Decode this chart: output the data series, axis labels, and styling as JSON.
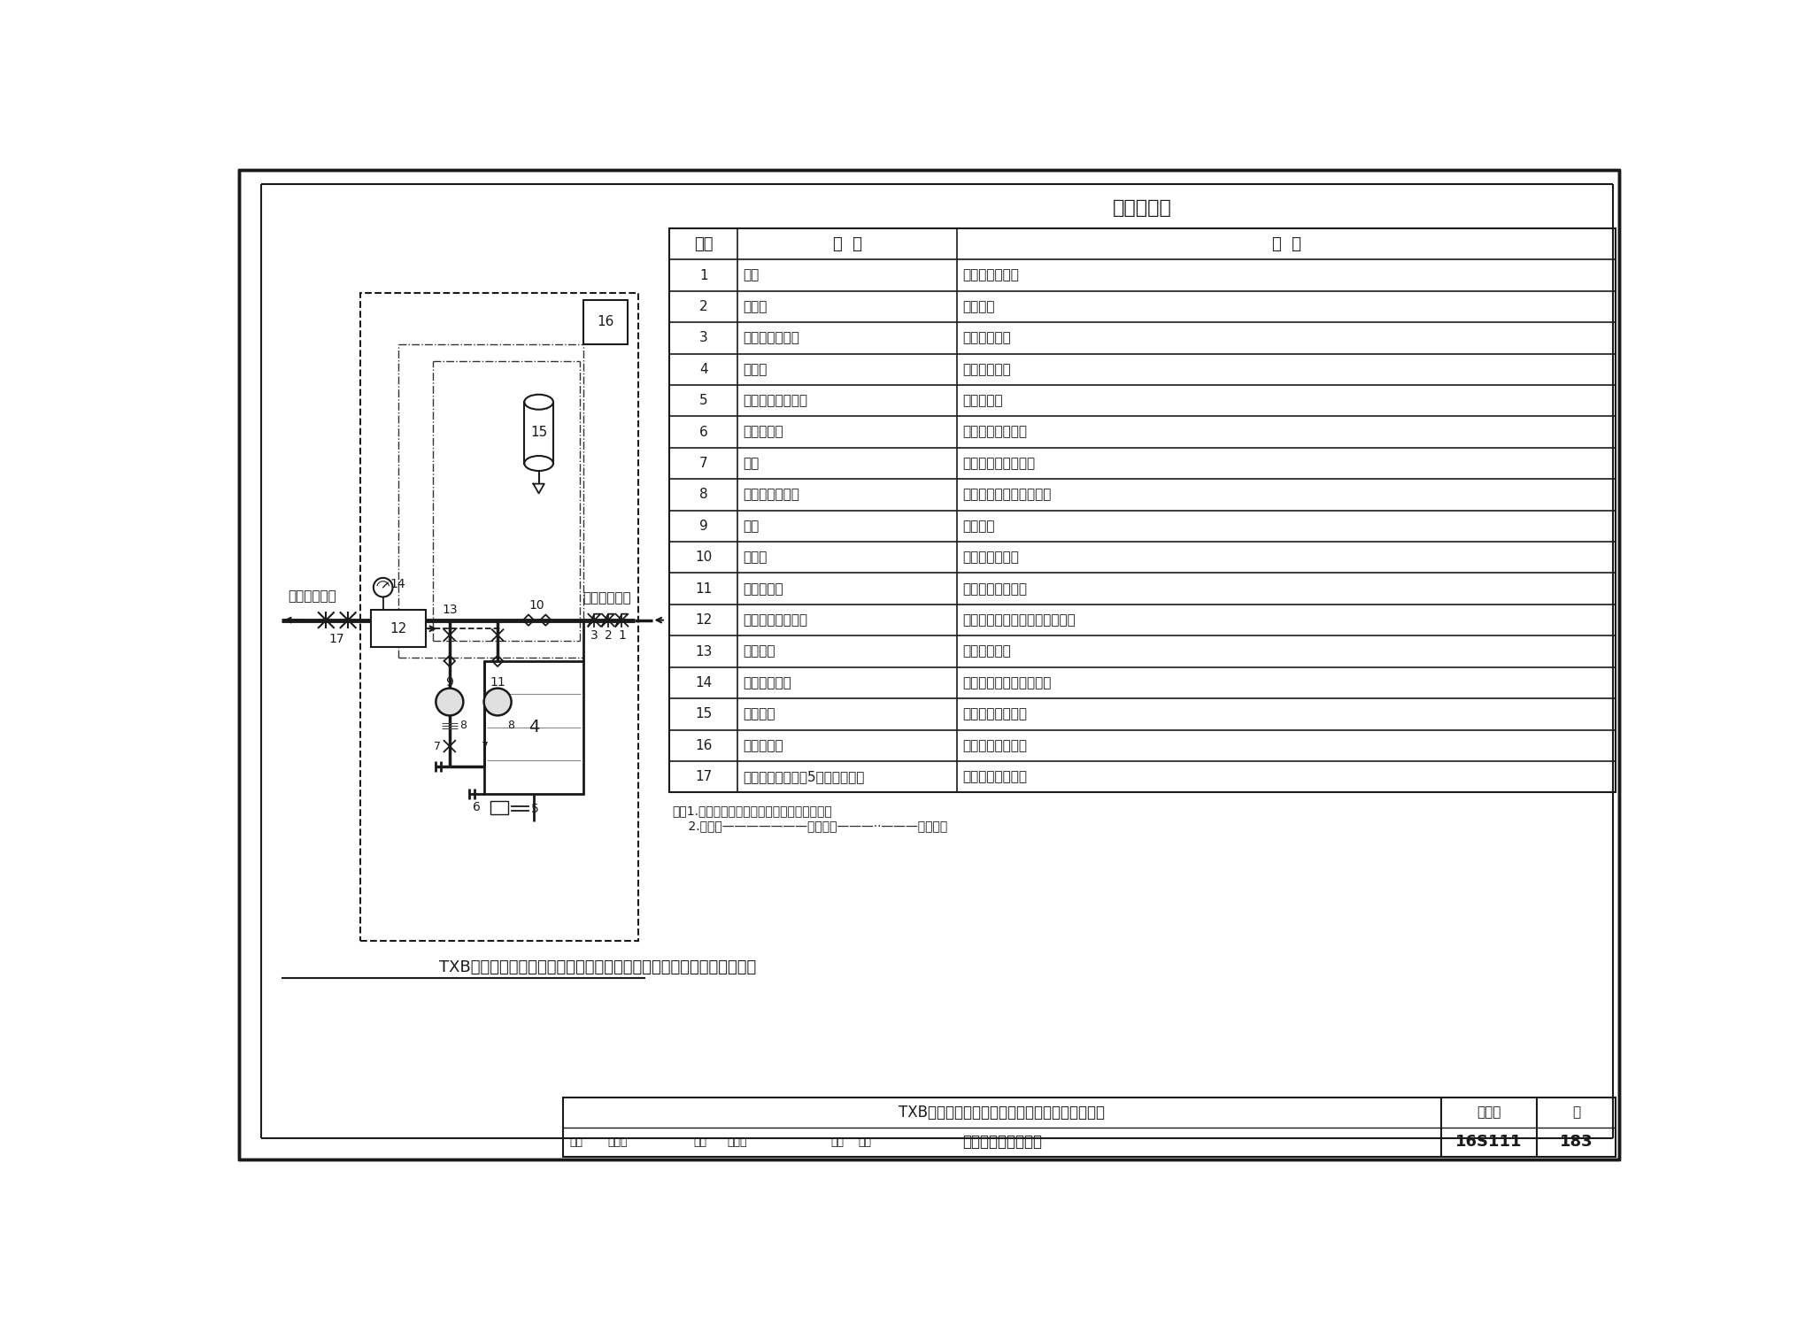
{
  "title": "主要部件表",
  "table_headers": [
    "序号",
    "名  称",
    "用  途"
  ],
  "table_data": [
    [
      "1",
      "阀门",
      "水箱进水控制阀"
    ],
    [
      "2",
      "过滤器",
      "水质过滤"
    ],
    [
      "3",
      "液压水位控制阀",
      "水箱自动补水"
    ],
    [
      "4",
      "储水箱",
      "储存所需水量"
    ],
    [
      "5",
      "水箱自洁消毒装置",
      "对储水消毒"
    ],
    [
      "6",
      "不锈钢滤网",
      "防止蚊虫进入水箱"
    ],
    [
      "7",
      "阀门",
      "水泵进、出口控制阀"
    ],
    [
      "8",
      "可曲挠橡胶接头",
      "隔振、便于管路拆卸检修"
    ],
    [
      "9",
      "主泵",
      "增压供水"
    ],
    [
      "10",
      "止回阀",
      "防止压力水回流"
    ],
    [
      "11",
      "小流量辅泵",
      "低谷用水辅助运行"
    ],
    [
      "12",
      "叠片同步自吸装置",
      "快速吸排水泵吸水管路中的空气"
    ],
    [
      "13",
      "出水总管",
      "连接用户管网"
    ],
    [
      "14",
      "电接点压力表",
      "检测设备出水管供水压力"
    ],
    [
      "15",
      "气压水罐",
      "保持系统压力稳定"
    ],
    [
      "16",
      "变频控制柜",
      "控制水泵变频运行"
    ],
    [
      "17",
      "消毒器接口（序号5未设置时用）",
      "供连接消毒装置用"
    ]
  ],
  "note_lines": [
    "注：1.图中虚线框内为厂家成套设备供货范围。",
    "    2.图例：———————控制线；———··———信号线。"
  ],
  "diagram_title": "TXB系列微机控制叠片同步自吸变频调速供水设备基本组成及控制原理图",
  "footer_title1": "TXB系列微机控制叠片同步自吸变频调速供水设备",
  "footer_title2": "基本组成及控制原理",
  "bg_color": "#ffffff",
  "line_color": "#1a1a1a"
}
